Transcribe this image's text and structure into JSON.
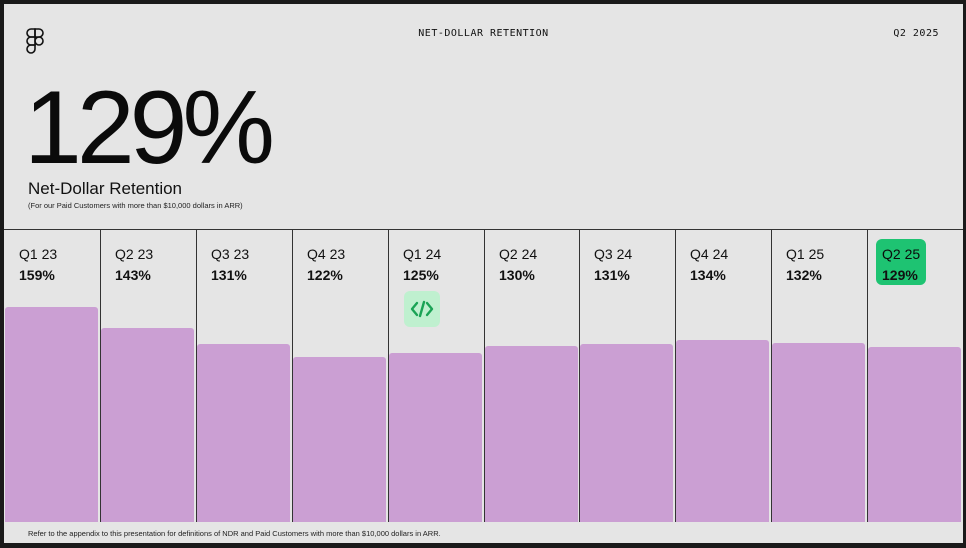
{
  "header": {
    "title": "NET-DOLLAR RETENTION",
    "period": "Q2 2025"
  },
  "hero": {
    "value": "129%",
    "label": "Net-Dollar Retention",
    "note": "(For our Paid Customers with more than $10,000 dollars in ARR)"
  },
  "footnote": "Refer to the appendix to this presentation for definitions of NDR and Paid Customers with more than $10,000 dollars in ARR.",
  "colors": {
    "bar": "#cb9fd3",
    "highlight": "#1ec372",
    "code_badge": "#bff0cf",
    "code_icon": "#1aa355"
  },
  "icons": {
    "logo": "figma-logo-icon",
    "code": "code-brackets-icon"
  },
  "chart_data": {
    "type": "bar",
    "categories": [
      "Q1 23",
      "Q2 23",
      "Q3 23",
      "Q4 23",
      "Q1 24",
      "Q2 24",
      "Q3 24",
      "Q4 24",
      "Q1 25",
      "Q2 25"
    ],
    "values": [
      159,
      143,
      131,
      122,
      125,
      130,
      131,
      134,
      132,
      129
    ],
    "labels": [
      "159%",
      "143%",
      "131%",
      "122%",
      "125%",
      "130%",
      "131%",
      "134%",
      "132%",
      "129%"
    ],
    "highlight_index": 9,
    "ylabel": "",
    "xlabel": ""
  }
}
